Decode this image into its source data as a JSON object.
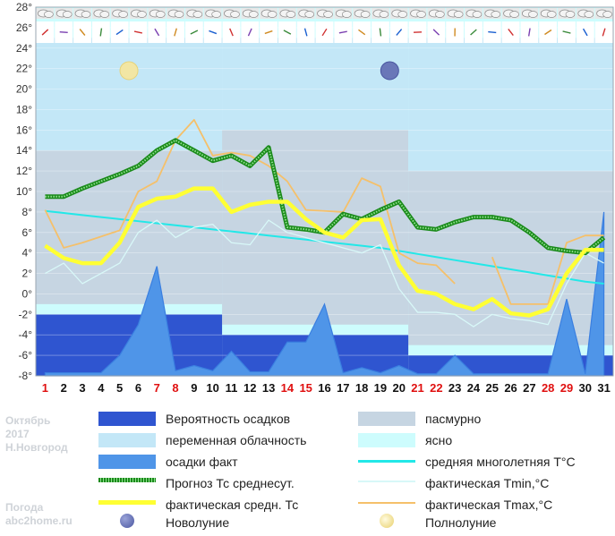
{
  "chart_data": {
    "type": "line",
    "y_ticks": [
      "28°",
      "26°",
      "24°",
      "22°",
      "20°",
      "18°",
      "16°",
      "14°",
      "12°",
      "10°",
      "8°",
      "6°",
      "4°",
      "2°",
      "0°",
      "-2°",
      "-4°",
      "-6°",
      "-8°"
    ],
    "ylim": [
      -8,
      28
    ],
    "x": [
      "1",
      "2",
      "3",
      "4",
      "5",
      "6",
      "7",
      "8",
      "9",
      "10",
      "11",
      "12",
      "13",
      "14",
      "15",
      "16",
      "17",
      "18",
      "19",
      "20",
      "21",
      "22",
      "23",
      "24",
      "25",
      "26",
      "27",
      "28",
      "29",
      "30",
      "31"
    ],
    "weekend_days": [
      "1",
      "7",
      "8",
      "14",
      "15",
      "21",
      "22",
      "28",
      "29"
    ],
    "series": [
      {
        "name": "Прогноз Тс среднесут.",
        "color": "#1a8a1a",
        "values": [
          9.5,
          9.5,
          10.3,
          11,
          11.7,
          12.5,
          14,
          15,
          14,
          13,
          13.5,
          12.5,
          14.3,
          6.5,
          6.3,
          6,
          7.8,
          7.3,
          8.2,
          9,
          6.5,
          6.3,
          7,
          7.5,
          7.5,
          7.2,
          6,
          4.5,
          4.2,
          4,
          5.5
        ]
      },
      {
        "name": "фактическая средн. Тс",
        "color": "#ffff33",
        "values": [
          4.7,
          3.5,
          3,
          3,
          5,
          8.5,
          9.3,
          9.5,
          10.3,
          10.3,
          8,
          8.7,
          9,
          9,
          7.3,
          6,
          5.5,
          7.2,
          7.3,
          2.8,
          0.3,
          0,
          -1,
          -1.5,
          -0.5,
          -1.9,
          -2.1,
          -1.5,
          2,
          4.3,
          4.3
        ]
      },
      {
        "name": "фактическая Tmin,°C",
        "color": "#d8f8f8",
        "values": [
          2,
          3,
          1,
          2,
          3,
          6,
          7.2,
          5.5,
          6.5,
          6.8,
          5,
          4.8,
          7.2,
          6,
          5.5,
          5,
          4.5,
          4,
          4.8,
          0.5,
          -1.8,
          -1.8,
          -2,
          -3.2,
          -2,
          -2.4,
          -2.6,
          -3,
          1,
          4,
          3
        ]
      },
      {
        "name": "фактическая Tmax,°C",
        "color": "#f5c06a",
        "values": [
          8.2,
          4.5,
          5,
          5.6,
          6.2,
          10,
          11,
          15,
          17,
          13.5,
          13.8,
          13.5,
          12.5,
          11,
          8.2,
          8.1,
          8,
          11.3,
          10.5,
          4,
          3,
          2.8,
          1,
          null,
          3.6,
          -1,
          -1,
          -1,
          5,
          5.7,
          5.7
        ]
      },
      {
        "name": "средняя многолетняя T°C",
        "color": "#22e8e8",
        "values": [
          8.1,
          7.9,
          7.7,
          7.5,
          7.3,
          7.1,
          6.9,
          6.7,
          6.5,
          6.3,
          6.1,
          5.9,
          5.7,
          5.5,
          5.3,
          5.1,
          4.9,
          4.7,
          4.5,
          4.2,
          3.9,
          3.6,
          3.3,
          3,
          2.7,
          2.4,
          2.1,
          1.8,
          1.5,
          1.2,
          1
        ]
      },
      {
        "name": "осадки факт",
        "color": "#4f95e8",
        "values": [
          -7.7,
          -7.7,
          -7.7,
          -7.7,
          -6,
          -3,
          2.7,
          -7.5,
          -7,
          -7.5,
          -5.6,
          -7.6,
          -7.6,
          -4.7,
          -4.7,
          -1,
          -7.7,
          -7.2,
          -7.7,
          -7,
          -7.8,
          -7.8,
          -6,
          -7.8,
          -7.8,
          -7.8,
          -7.8,
          -7.8,
          -0.5,
          -7.8,
          8
        ]
      }
    ],
    "cloud_bands": [
      {
        "x": [
          0.5,
          10.5
        ],
        "state": "переменная облачность",
        "range": [
          14,
          25
        ]
      },
      {
        "x": [
          0.5,
          10.5
        ],
        "state": "пасмурно",
        "range": [
          -1,
          14
        ]
      },
      {
        "x": [
          10.5,
          20.5
        ],
        "state": "переменная облачность",
        "range": [
          16,
          25
        ]
      },
      {
        "x": [
          10.5,
          20.5
        ],
        "state": "пасмурно",
        "range": [
          -3,
          16
        ]
      },
      {
        "x": [
          20.5,
          31.5
        ],
        "state": "переменная облачность",
        "range": [
          12,
          25
        ]
      },
      {
        "x": [
          20.5,
          31.5
        ],
        "state": "пасмурно",
        "range": [
          -5,
          12
        ]
      }
    ],
    "precip_probability": [
      {
        "x": [
          0.5,
          10.5
        ],
        "level": -2
      },
      {
        "x": [
          10.5,
          20.5
        ],
        "level": -4
      },
      {
        "x": [
          20.5,
          31.5
        ],
        "level": -6
      }
    ],
    "moon": [
      {
        "day": 5.5,
        "phase": "Полнолуние"
      },
      {
        "day": 19.5,
        "phase": "Новолуние"
      }
    ]
  },
  "side_text": {
    "month": "Октябрь",
    "year": "2017",
    "city": "Н.Новгород",
    "site1": "Погода",
    "site2": "abc2home.ru"
  },
  "legend": [
    {
      "label": "Вероятность осадков",
      "color": "#2f55d0",
      "style": "rect"
    },
    {
      "label": "пасмурно",
      "color": "#c6d5e2",
      "style": "rect"
    },
    {
      "label": "переменная облачность",
      "color": "#c3e7f7",
      "style": "rect"
    },
    {
      "label": "ясно",
      "color": "#cdfcfd",
      "style": "rect"
    },
    {
      "label": "осадки факт",
      "color": "#4f95e8",
      "style": "rect"
    },
    {
      "label": "средняя многолетняя T°C",
      "color": "#22e8e8",
      "style": "line"
    },
    {
      "label": "Прогноз Тс среднесут.",
      "color": "#1a8a1a",
      "style": "dotted"
    },
    {
      "label": "фактическая Tmin,°C",
      "color": "#d8f8f8",
      "style": "line"
    },
    {
      "label": "фактическая средн. Тс",
      "color": "#ffff33",
      "style": "thick"
    },
    {
      "label": "фактическая Tmax,°C",
      "color": "#f5c06a",
      "style": "line"
    },
    {
      "label": "Новолуние",
      "color": "#6a77b8",
      "style": "newmoon"
    },
    {
      "label": "Полнолуние",
      "color": "#f0e09a",
      "style": "fullmoon"
    }
  ]
}
